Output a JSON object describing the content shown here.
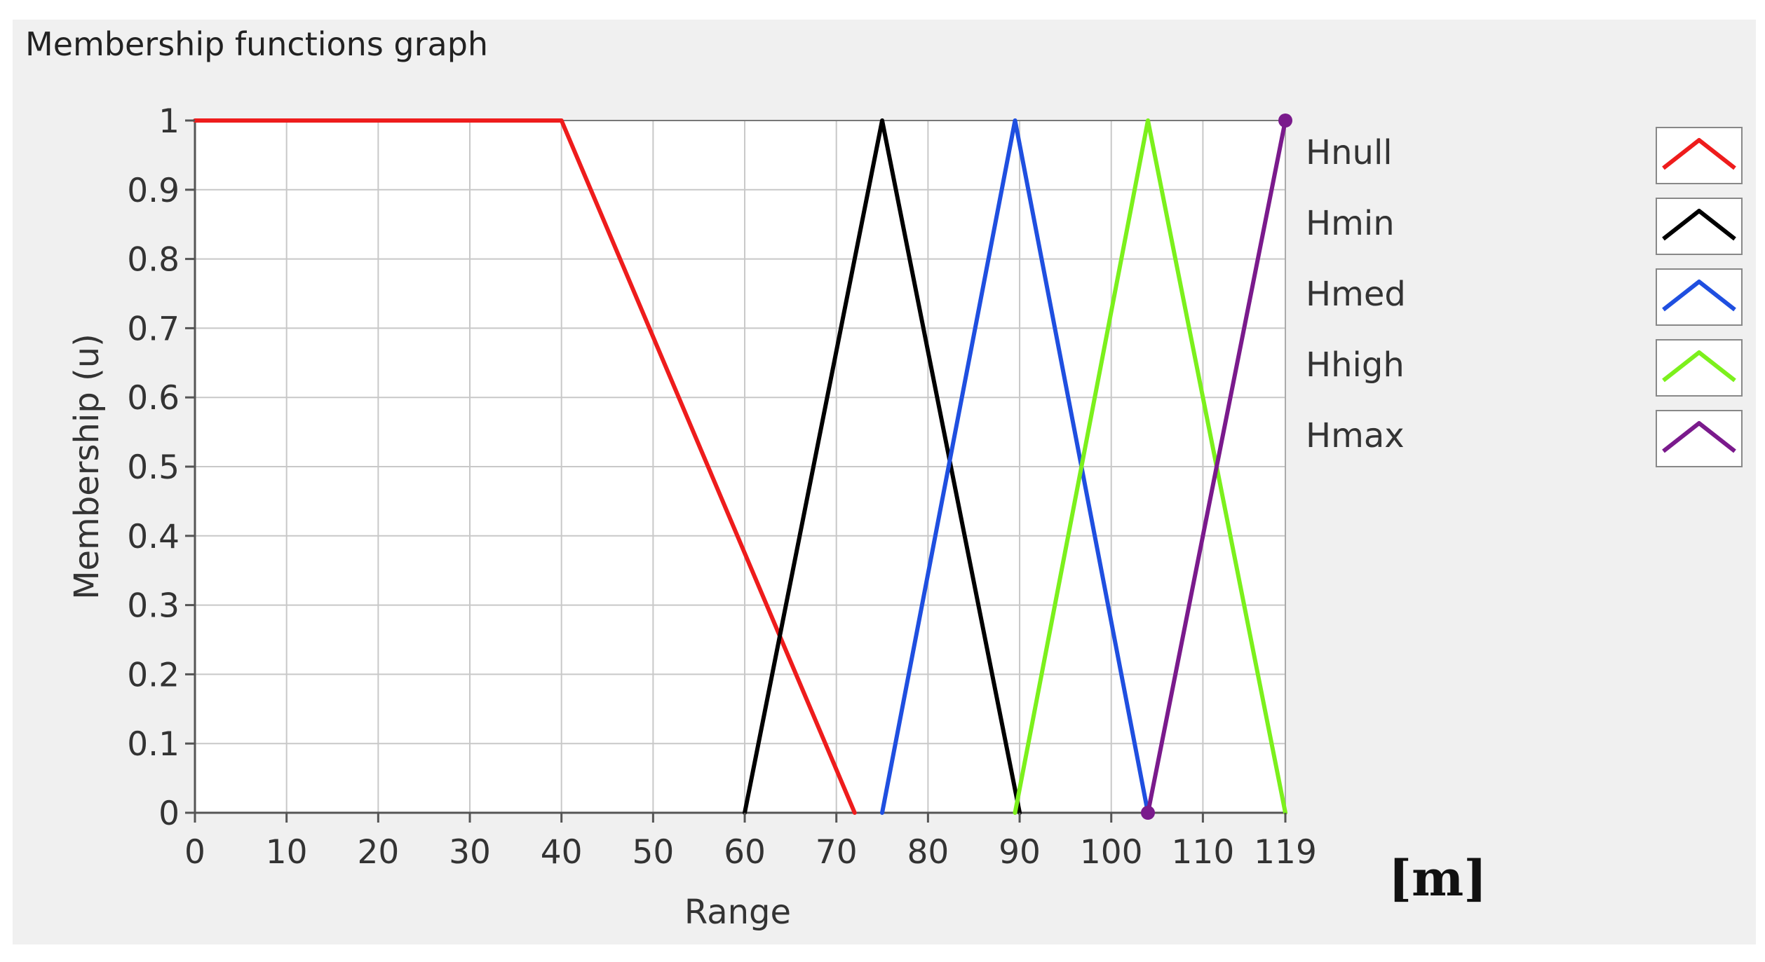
{
  "panel": {
    "title": "Membership functions graph"
  },
  "unit_label": "[m]",
  "chart_data": {
    "type": "line",
    "title": "",
    "xlabel": "Range",
    "ylabel": "Membership (u)",
    "xlim": [
      0,
      119
    ],
    "ylim": [
      0,
      1
    ],
    "x_ticks": [
      0,
      10,
      20,
      30,
      40,
      50,
      60,
      70,
      80,
      90,
      100,
      110,
      119
    ],
    "y_ticks": [
      0,
      0.1,
      0.2,
      0.3,
      0.4,
      0.5,
      0.6,
      0.7,
      0.8,
      0.9,
      1
    ],
    "y_tick_labels": [
      "0",
      "0.1",
      "0.2",
      "0.3",
      "0.4",
      "0.5",
      "0.6",
      "0.7",
      "0.8",
      "0.9",
      "1"
    ],
    "grid": true,
    "legend_position": "right",
    "series": [
      {
        "name": "Hnull",
        "color": "#ee1c1c",
        "points": [
          [
            0,
            1
          ],
          [
            40,
            1
          ],
          [
            72,
            0
          ]
        ]
      },
      {
        "name": "Hmin",
        "color": "#000000",
        "points": [
          [
            60,
            0
          ],
          [
            75,
            1
          ],
          [
            90,
            0
          ]
        ]
      },
      {
        "name": "Hmed",
        "color": "#1f4fe0",
        "points": [
          [
            75,
            0
          ],
          [
            89.5,
            1
          ],
          [
            104,
            0
          ]
        ]
      },
      {
        "name": "Hhigh",
        "color": "#7cf01c",
        "points": [
          [
            89.5,
            0
          ],
          [
            104,
            1
          ],
          [
            119,
            0
          ]
        ]
      },
      {
        "name": "Hmax",
        "color": "#7a1a8c",
        "points": [
          [
            104,
            0
          ],
          [
            119,
            1
          ]
        ]
      }
    ]
  }
}
